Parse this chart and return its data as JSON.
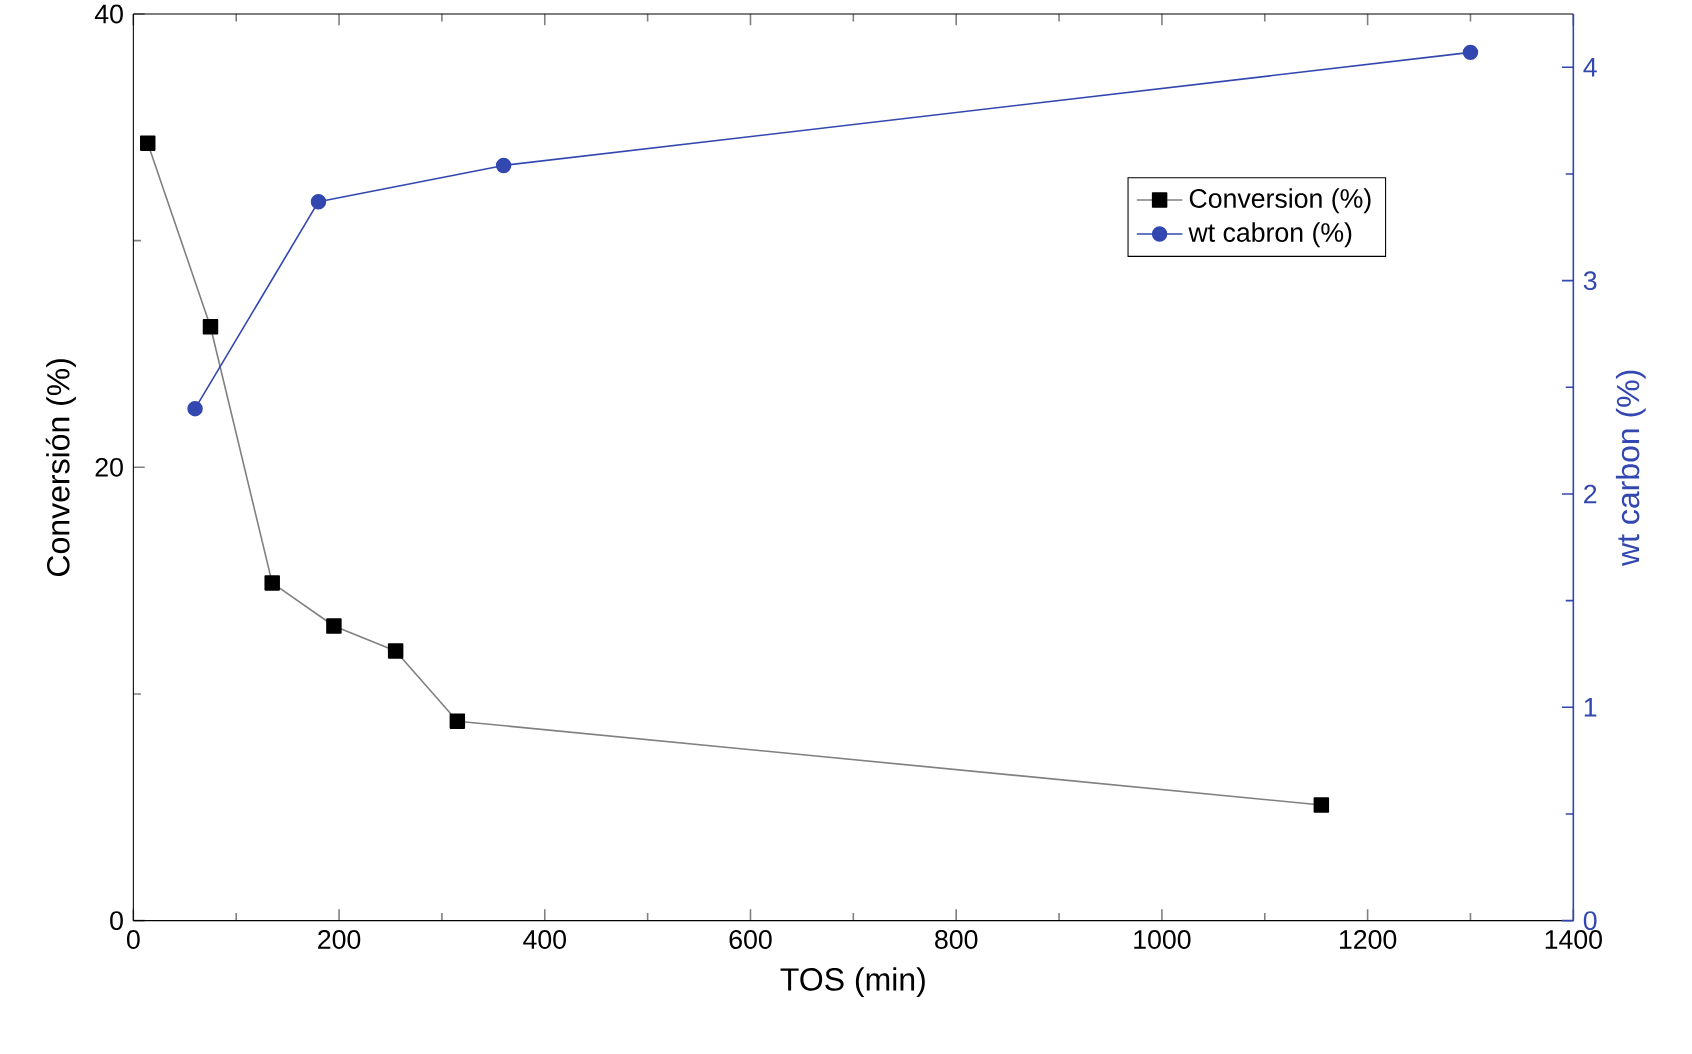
{
  "chart_data": {
    "type": "line",
    "xlabel": "TOS (min)",
    "ylabel": "Conversión (%)",
    "y2label": "wt carbon (%)",
    "xlim": [
      0,
      1400
    ],
    "xticks": [
      0,
      200,
      400,
      600,
      800,
      1000,
      1200,
      1400
    ],
    "ylim": [
      0,
      40
    ],
    "yticks": [
      0,
      20,
      40
    ],
    "y2lim": [
      0,
      4.25
    ],
    "y2ticks": [
      0,
      1,
      2,
      3,
      4
    ],
    "legend": "top right",
    "series": [
      {
        "name": "Conversion (%)",
        "color": "#000000",
        "marker": "square",
        "x": [
          14,
          75,
          135,
          195,
          255,
          315,
          1155
        ],
        "values": [
          34.3,
          26.2,
          14.9,
          13.0,
          11.9,
          8.8,
          5.1
        ]
      },
      {
        "name": "wt cabron (%)",
        "color": "#3347b0",
        "marker": "circle",
        "axis": "y2",
        "x": [
          60,
          180,
          360,
          1300
        ],
        "values": [
          2.4,
          3.37,
          3.54,
          4.07
        ]
      }
    ]
  }
}
